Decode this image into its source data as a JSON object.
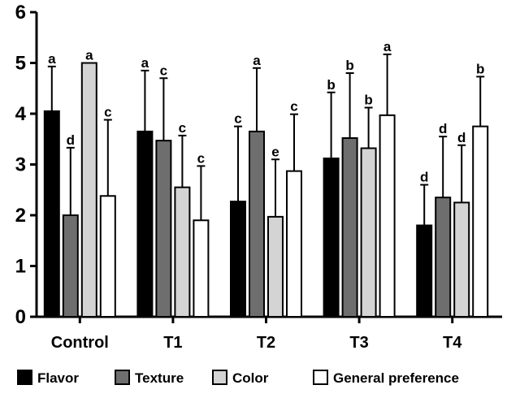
{
  "chart_data": {
    "type": "bar",
    "categories": [
      "Control",
      "T1",
      "T2",
      "T3",
      "T4"
    ],
    "ylim": [
      0,
      6
    ],
    "yticks": [
      "0",
      "1",
      "2",
      "3",
      "4",
      "5",
      "6"
    ],
    "grid": false,
    "legend_position": "bottom",
    "series": [
      {
        "name": "Flavor",
        "color": "#000000",
        "values": [
          4.05,
          3.65,
          2.27,
          3.12,
          1.8
        ],
        "errors": [
          0.88,
          1.2,
          1.48,
          1.3,
          0.8
        ],
        "letters": [
          "a",
          "a",
          "c",
          "b",
          "d"
        ]
      },
      {
        "name": "Texture",
        "color": "#6e6e6e",
        "values": [
          2.0,
          3.47,
          3.65,
          3.52,
          2.35
        ],
        "errors": [
          1.33,
          1.23,
          1.25,
          1.28,
          1.2
        ],
        "letters": [
          "d",
          "c",
          "a",
          "b",
          "d"
        ]
      },
      {
        "name": "Color",
        "color": "#d4d4d4",
        "values": [
          5.0,
          2.55,
          1.97,
          3.32,
          2.25
        ],
        "errors": [
          0.0,
          1.02,
          1.13,
          0.8,
          1.13
        ],
        "letters": [
          "a",
          "c",
          "e",
          "b",
          "d"
        ]
      },
      {
        "name": "General preference",
        "color": "#ffffff",
        "values": [
          2.38,
          1.9,
          2.87,
          3.97,
          3.75
        ],
        "errors": [
          1.5,
          1.07,
          1.12,
          1.2,
          0.98
        ],
        "letters": [
          "c",
          "c",
          "c",
          "a",
          "b"
        ]
      }
    ]
  }
}
